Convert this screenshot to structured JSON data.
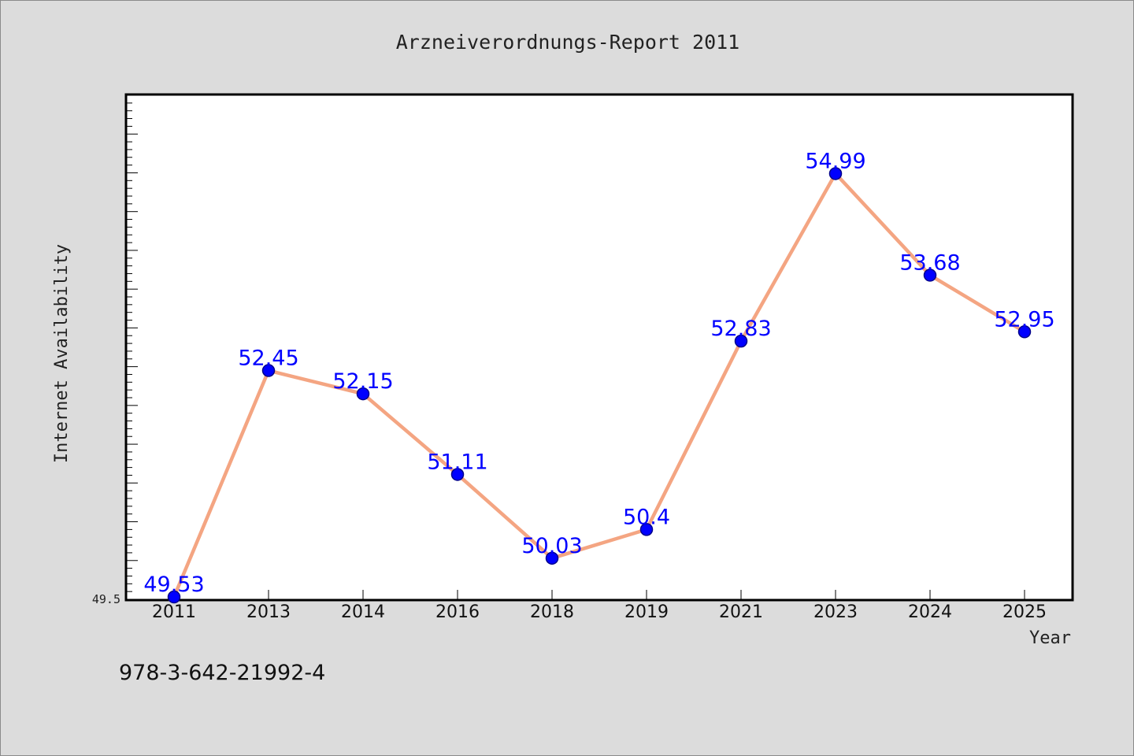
{
  "chart_data": {
    "type": "line",
    "title": "Arzneiverordnungs-Report 2011",
    "xlabel": "Year",
    "ylabel": "Internet Availability",
    "categories": [
      "2011",
      "2013",
      "2014",
      "2016",
      "2018",
      "2019",
      "2021",
      "2023",
      "2024",
      "2025"
    ],
    "series": [
      {
        "values": [
          49.53,
          52.45,
          52.15,
          51.11,
          50.03,
          50.4,
          52.83,
          54.99,
          53.68,
          52.95
        ],
        "labels": [
          "49.53",
          "52.45",
          "52.15",
          "51.11",
          "50.03",
          "50.4",
          "52.83",
          "54.99",
          "53.68",
          "52.95"
        ]
      }
    ],
    "ylim": [
      49.5,
      56.0
    ],
    "y_tick_labels": [
      "49.5"
    ],
    "grid": false,
    "legend": "none",
    "annotation": "978-3-642-21992-4",
    "colors": {
      "line": "#f4a582",
      "marker": "#0000ff",
      "marker_edge": "#00008b",
      "data_label": "#0000ff",
      "background": "#dcdcdc",
      "plot_area": "#ffffff"
    }
  }
}
